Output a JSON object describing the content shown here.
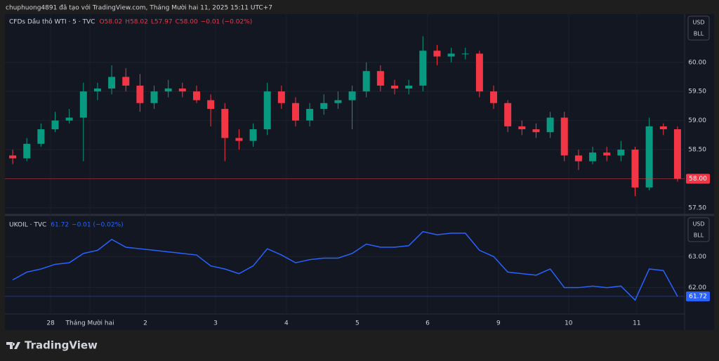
{
  "header": "chuphuong4891 đã tạo với TradingView.com, Tháng Mười hai 11, 2025 15:11 UTC+7",
  "footer": "TradingView",
  "currency": "USD",
  "unit": "BLL",
  "xlim": [
    0,
    48
  ],
  "xticks": [
    {
      "value": 3.18,
      "label": "28"
    },
    {
      "value": 5.96,
      "label": "Tháng Mười hai"
    },
    {
      "value": 9.88,
      "label": "2"
    },
    {
      "value": 14.84,
      "label": "3"
    },
    {
      "value": 19.85,
      "label": "4"
    },
    {
      "value": 24.86,
      "label": "5"
    },
    {
      "value": 29.83,
      "label": "6"
    },
    {
      "value": 34.84,
      "label": "9"
    },
    {
      "value": 39.8,
      "label": "10"
    },
    {
      "value": 44.62,
      "label": "11"
    }
  ],
  "chart_data": [
    {
      "type": "candlestick",
      "title": "CFDs Dầu thô WTI · 5 · TVC",
      "legend_values": [
        "O58.02",
        "H58.02",
        "L57.97",
        "C58.00",
        "−0.01 (−0.02%)"
      ],
      "up_color": "#089981",
      "down_color": "#f23645",
      "last_label": "58.00",
      "ylim": [
        57.39,
        60.83
      ],
      "yticks": [
        {
          "value": 57.5,
          "label": "57.50"
        },
        {
          "value": 58,
          "label": "58.00"
        },
        {
          "value": 58.5,
          "label": "58.50"
        },
        {
          "value": 59,
          "label": "59.00"
        },
        {
          "value": 59.5,
          "label": "59.50"
        },
        {
          "value": 60,
          "label": "60.00"
        }
      ],
      "open": [
        58.4,
        58.35,
        58.6,
        58.85,
        59.0,
        59.05,
        59.5,
        59.55,
        59.75,
        59.6,
        59.3,
        59.5,
        59.55,
        59.5,
        59.35,
        59.2,
        58.7,
        58.65,
        58.85,
        59.5,
        59.3,
        59.0,
        59.2,
        59.3,
        59.35,
        59.5,
        59.85,
        59.6,
        59.55,
        59.6,
        60.2,
        60.1,
        60.15,
        60.15,
        59.5,
        59.3,
        58.9,
        58.85,
        58.8,
        59.05,
        58.4,
        58.3,
        58.45,
        58.4,
        58.5,
        57.85,
        58.9,
        58.85
      ],
      "high": [
        58.5,
        58.7,
        58.95,
        59.15,
        59.2,
        59.65,
        59.65,
        59.95,
        59.9,
        59.8,
        59.6,
        59.7,
        59.65,
        59.6,
        59.45,
        59.3,
        58.85,
        58.95,
        59.65,
        59.6,
        59.4,
        59.3,
        59.45,
        59.5,
        59.6,
        60.0,
        59.95,
        59.7,
        59.7,
        60.45,
        60.3,
        60.25,
        60.25,
        60.2,
        59.6,
        59.35,
        59.0,
        58.95,
        59.15,
        59.15,
        58.5,
        58.55,
        58.55,
        58.65,
        58.55,
        59.05,
        58.95,
        58.9
      ],
      "low": [
        58.25,
        58.3,
        58.55,
        58.8,
        58.95,
        58.3,
        59.35,
        59.45,
        59.5,
        59.15,
        59.2,
        59.4,
        59.4,
        59.3,
        58.9,
        58.3,
        58.5,
        58.55,
        58.75,
        59.2,
        58.9,
        58.9,
        59.1,
        59.2,
        58.85,
        59.4,
        59.5,
        59.45,
        59.45,
        59.5,
        59.95,
        60.0,
        60.05,
        59.4,
        59.2,
        58.8,
        58.75,
        58.7,
        58.7,
        58.3,
        58.15,
        58.25,
        58.3,
        58.3,
        57.7,
        57.8,
        58.75,
        57.95
      ],
      "close": [
        58.35,
        58.6,
        58.85,
        59.0,
        59.05,
        59.5,
        59.55,
        59.75,
        59.6,
        59.3,
        59.5,
        59.55,
        59.5,
        59.35,
        59.2,
        58.7,
        58.65,
        58.85,
        59.5,
        59.3,
        59.0,
        59.2,
        59.3,
        59.35,
        59.5,
        59.85,
        59.6,
        59.55,
        59.6,
        60.2,
        60.1,
        60.15,
        60.15,
        59.5,
        59.3,
        58.9,
        58.85,
        58.8,
        59.05,
        58.4,
        58.3,
        58.45,
        58.4,
        58.5,
        57.85,
        58.9,
        58.85,
        58.0
      ]
    },
    {
      "type": "line",
      "title": "UKOIL · TVC",
      "legend_values": [
        "61.72",
        "−0.01 (−0.02%)"
      ],
      "color": "#2962ff",
      "last_label": "61.72",
      "ylim": [
        61.2,
        64.27
      ],
      "yticks": [
        {
          "value": 62,
          "label": "62.00"
        },
        {
          "value": 63,
          "label": "63.00"
        }
      ],
      "values": [
        62.25,
        62.5,
        62.6,
        62.75,
        62.8,
        63.1,
        63.2,
        63.55,
        63.3,
        63.25,
        63.2,
        63.15,
        63.1,
        63.05,
        62.7,
        62.6,
        62.45,
        62.7,
        63.25,
        63.05,
        62.8,
        62.9,
        62.95,
        62.95,
        63.1,
        63.4,
        63.3,
        63.3,
        63.35,
        63.8,
        63.7,
        63.75,
        63.75,
        63.2,
        63.0,
        62.5,
        62.45,
        62.4,
        62.6,
        62.0,
        62.0,
        62.05,
        62.0,
        62.05,
        61.6,
        62.6,
        62.55,
        61.72
      ]
    }
  ]
}
